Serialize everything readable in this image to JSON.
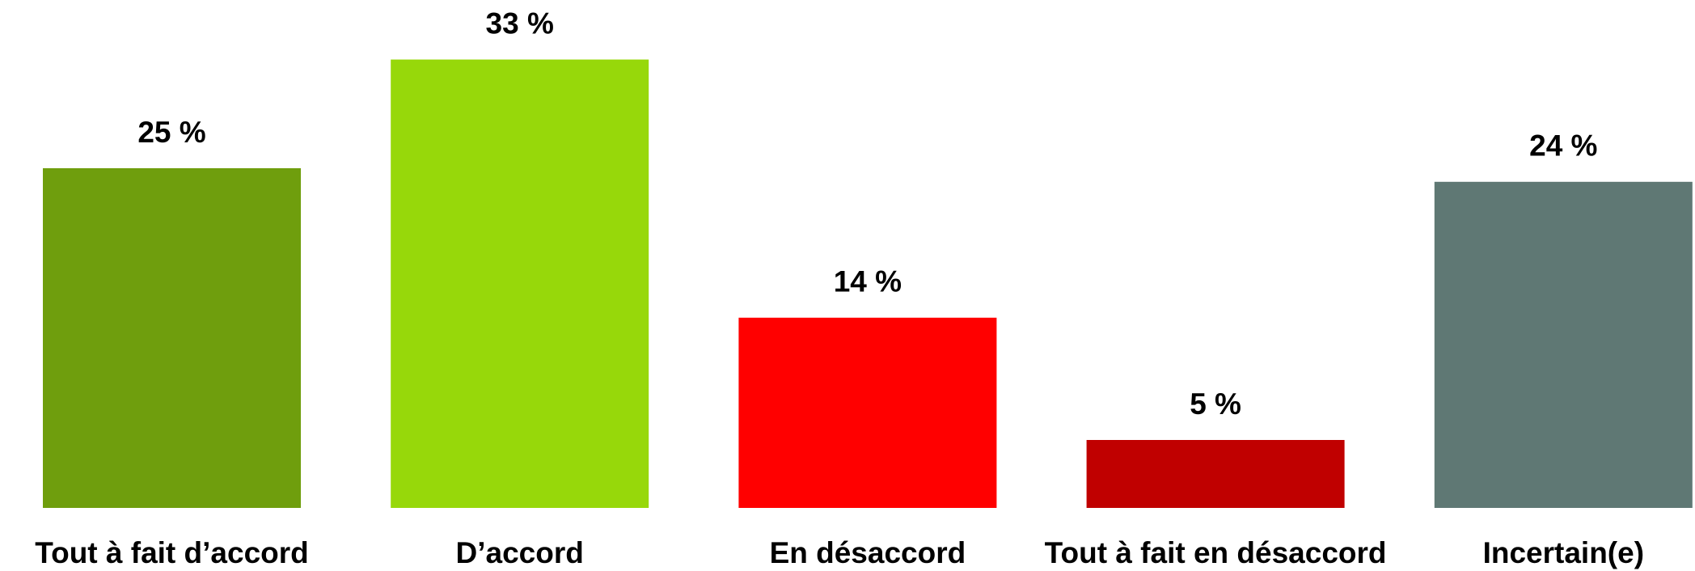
{
  "chart_data": {
    "type": "bar",
    "categories": [
      "Tout à fait d’accord",
      "D’accord",
      "En désaccord",
      "Tout à fait en désaccord",
      "Incertain(e)"
    ],
    "values": [
      25,
      33,
      14,
      5,
      24
    ],
    "value_labels": [
      "25 %",
      "33 %",
      "14 %",
      "5 %",
      "24 %"
    ],
    "colors": [
      "#6f9e0d",
      "#97d80a",
      "#ff0000",
      "#c00000",
      "#5f7874"
    ]
  }
}
